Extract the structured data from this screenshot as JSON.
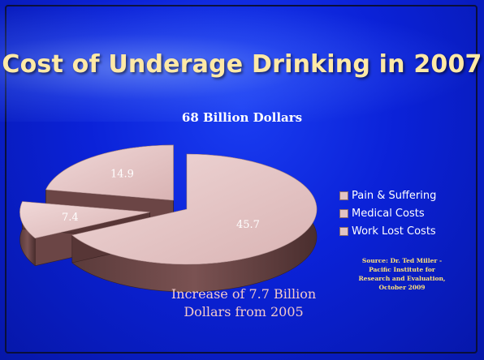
{
  "slide": {
    "title": "Cost of Underage Drinking in 2007",
    "note": "Increase of 7.7 Billion Dollars from 2005",
    "source": "Source: Dr. Ted Miller - Pacific Institute for Research and Evaluation, October 2009"
  },
  "chart_data": {
    "type": "pie",
    "title": "68 Billion Dollars",
    "exploded": true,
    "three_d": true,
    "legend_position": "right",
    "categories": [
      "Pain & Suffering",
      "Medical Costs",
      "Work Lost Costs"
    ],
    "values": [
      45.7,
      7.4,
      14.9
    ],
    "colors": [
      "#e2c4c4",
      "#e2c4c4",
      "#e2c4c4"
    ]
  }
}
